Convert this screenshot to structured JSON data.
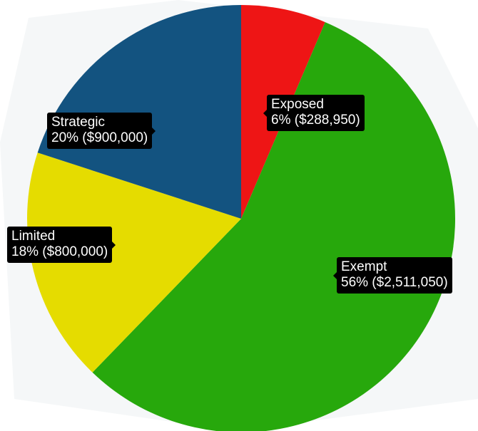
{
  "chart_data": {
    "type": "pie",
    "slices": [
      {
        "name": "Exposed",
        "percent_label": "6%",
        "value": 288950,
        "value_label": "$288,950",
        "color": "#ee1515"
      },
      {
        "name": "Exempt",
        "percent_label": "56%",
        "value": 2511050,
        "value_label": "$2,511,050",
        "color": "#27a80c"
      },
      {
        "name": "Limited",
        "percent_label": "18%",
        "value": 800000,
        "value_label": "$800,000",
        "color": "#e5dc00"
      },
      {
        "name": "Strategic",
        "percent_label": "20%",
        "value": 900000,
        "value_label": "$900,000",
        "color": "#135380"
      }
    ],
    "start_angle_deg": 0,
    "direction": "clockwise",
    "legend": "none",
    "labels": "tooltip-style callouts on slices"
  }
}
